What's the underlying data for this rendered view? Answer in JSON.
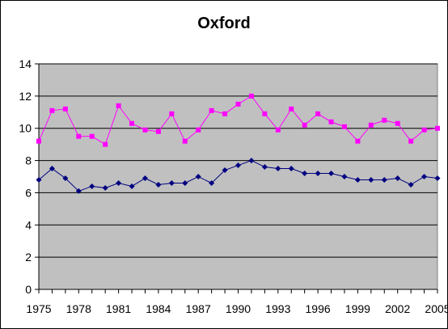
{
  "chart_data": {
    "type": "line",
    "title": "Oxford",
    "xlabel": "",
    "ylabel": "",
    "x": [
      1975,
      1976,
      1977,
      1978,
      1979,
      1980,
      1981,
      1982,
      1983,
      1984,
      1985,
      1986,
      1987,
      1988,
      1989,
      1990,
      1991,
      1992,
      1993,
      1994,
      1995,
      1996,
      1997,
      1998,
      1999,
      2000,
      2001,
      2002,
      2003,
      2004,
      2005
    ],
    "x_tick_labels": [
      "1975",
      "1978",
      "1981",
      "1984",
      "1987",
      "1990",
      "1993",
      "1996",
      "1999",
      "2002",
      "2005"
    ],
    "y_tick_labels": [
      "0",
      "2",
      "4",
      "6",
      "8",
      "10",
      "12",
      "14"
    ],
    "xlim": [
      1975,
      2005
    ],
    "ylim": [
      0,
      14
    ],
    "grid": true,
    "plot_background": "#c0c0c0",
    "series": [
      {
        "color": "#ff00ff",
        "marker": "square",
        "values": [
          9.2,
          11.1,
          11.2,
          9.5,
          9.5,
          9.0,
          11.4,
          10.3,
          9.9,
          9.8,
          10.9,
          9.2,
          9.9,
          11.1,
          10.9,
          11.5,
          12.0,
          10.9,
          9.9,
          11.2,
          10.2,
          10.9,
          10.4,
          10.1,
          9.2,
          10.2,
          10.5,
          10.3,
          9.2,
          9.9,
          10.0
        ]
      },
      {
        "color": "#000080",
        "marker": "diamond",
        "values": [
          6.8,
          7.5,
          6.9,
          6.1,
          6.4,
          6.3,
          6.6,
          6.4,
          6.9,
          6.5,
          6.6,
          6.6,
          7.0,
          6.6,
          7.4,
          7.7,
          8.0,
          7.6,
          7.5,
          7.5,
          7.2,
          7.2,
          7.2,
          7.0,
          6.8,
          6.8,
          6.8,
          6.9,
          6.5,
          7.0,
          6.9
        ]
      }
    ]
  }
}
